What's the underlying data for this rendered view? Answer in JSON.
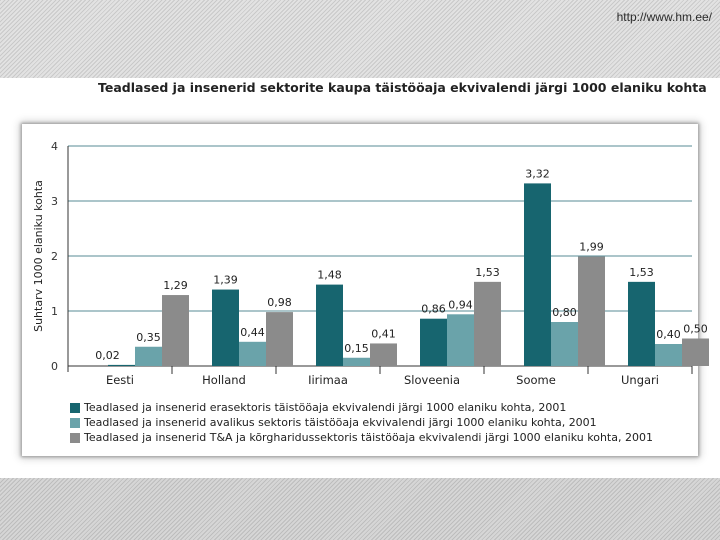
{
  "header": {
    "url": "http://www.hm.ee/"
  },
  "colors": {
    "series1": "#17656f",
    "series2": "#6aa3aa",
    "series3": "#8b8b8b",
    "axis": "#333333",
    "grid": "#1f6470"
  },
  "chart_data": {
    "type": "bar",
    "title": "Teadlased ja insenerid sektorite kaupa täistööaja ekvivalendi järgi 1000 elaniku kohta",
    "xlabel": "",
    "ylabel": "Suhtarv 1000 elaniku kohta",
    "ylim": [
      0,
      4
    ],
    "yticks": [
      "0",
      "1",
      "2",
      "3",
      "4"
    ],
    "grid": true,
    "legend_position": "bottom",
    "categories": [
      "Eesti",
      "Holland",
      "Iirimaa",
      "Sloveenia",
      "Soome",
      "Ungari"
    ],
    "series": [
      {
        "name": "Teadlased ja insenerid erasektoris täistööaja ekvivalendi järgi 1000 elaniku kohta, 2001",
        "values": [
          0.02,
          1.39,
          1.48,
          0.86,
          3.32,
          1.53
        ],
        "labels": [
          "0,02",
          "1,39",
          "1,48",
          "0,86",
          "3,32",
          "1,53"
        ]
      },
      {
        "name": "Teadlased ja insenerid avalikus sektoris täistööaja ekvivalendi järgi 1000 elaniku kohta, 2001",
        "values": [
          0.35,
          0.44,
          0.15,
          0.94,
          0.8,
          0.4
        ],
        "labels": [
          "0,35",
          "0,44",
          "0,15",
          "0,94",
          "0,80",
          "0,40"
        ]
      },
      {
        "name": "Teadlased ja insenerid T&A ja kõrgharidussektoris täistööaja ekvivalendi järgi 1000 elaniku kohta, 2001",
        "values": [
          1.29,
          0.98,
          0.41,
          1.53,
          1.99,
          0.5
        ],
        "labels": [
          "1,29",
          "0,98",
          "0,41",
          "1,53",
          "1,99",
          "0,50"
        ]
      }
    ]
  }
}
